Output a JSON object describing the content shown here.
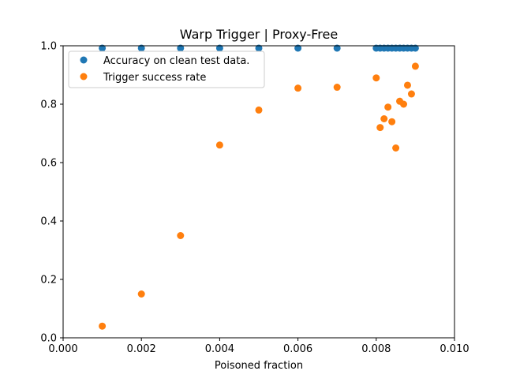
{
  "chart_data": {
    "type": "scatter",
    "title": "Warp Trigger | Proxy-Free",
    "xlabel": "Poisoned fraction",
    "ylabel": "",
    "xlim": [
      0.0,
      0.01
    ],
    "ylim": [
      0.0,
      1.0
    ],
    "xticks": [
      "0.000",
      "0.002",
      "0.004",
      "0.006",
      "0.008",
      "0.010"
    ],
    "yticks": [
      "0.0",
      "0.2",
      "0.4",
      "0.6",
      "0.8",
      "1.0"
    ],
    "grid": false,
    "legend_position": "upper-left",
    "series": [
      {
        "name": "Accuracy on clean test data.",
        "color": "#1f77b4",
        "x": [
          0.001,
          0.002,
          0.003,
          0.004,
          0.005,
          0.006,
          0.007,
          0.008,
          0.0081,
          0.0082,
          0.0083,
          0.0084,
          0.0085,
          0.0086,
          0.0087,
          0.0088,
          0.0089,
          0.009
        ],
        "y": [
          0.992,
          0.992,
          0.992,
          0.992,
          0.992,
          0.992,
          0.992,
          0.992,
          0.992,
          0.992,
          0.992,
          0.992,
          0.992,
          0.992,
          0.992,
          0.992,
          0.992,
          0.992
        ]
      },
      {
        "name": "Trigger success rate",
        "color": "#ff7f0e",
        "x": [
          0.001,
          0.002,
          0.003,
          0.004,
          0.005,
          0.006,
          0.007,
          0.008,
          0.0081,
          0.0082,
          0.0083,
          0.0084,
          0.0085,
          0.0086,
          0.0087,
          0.0088,
          0.0089,
          0.009
        ],
        "y": [
          0.04,
          0.15,
          0.35,
          0.66,
          0.78,
          0.855,
          0.858,
          0.89,
          0.72,
          0.75,
          0.79,
          0.74,
          0.65,
          0.81,
          0.8,
          0.865,
          0.835,
          0.93
        ]
      }
    ]
  }
}
